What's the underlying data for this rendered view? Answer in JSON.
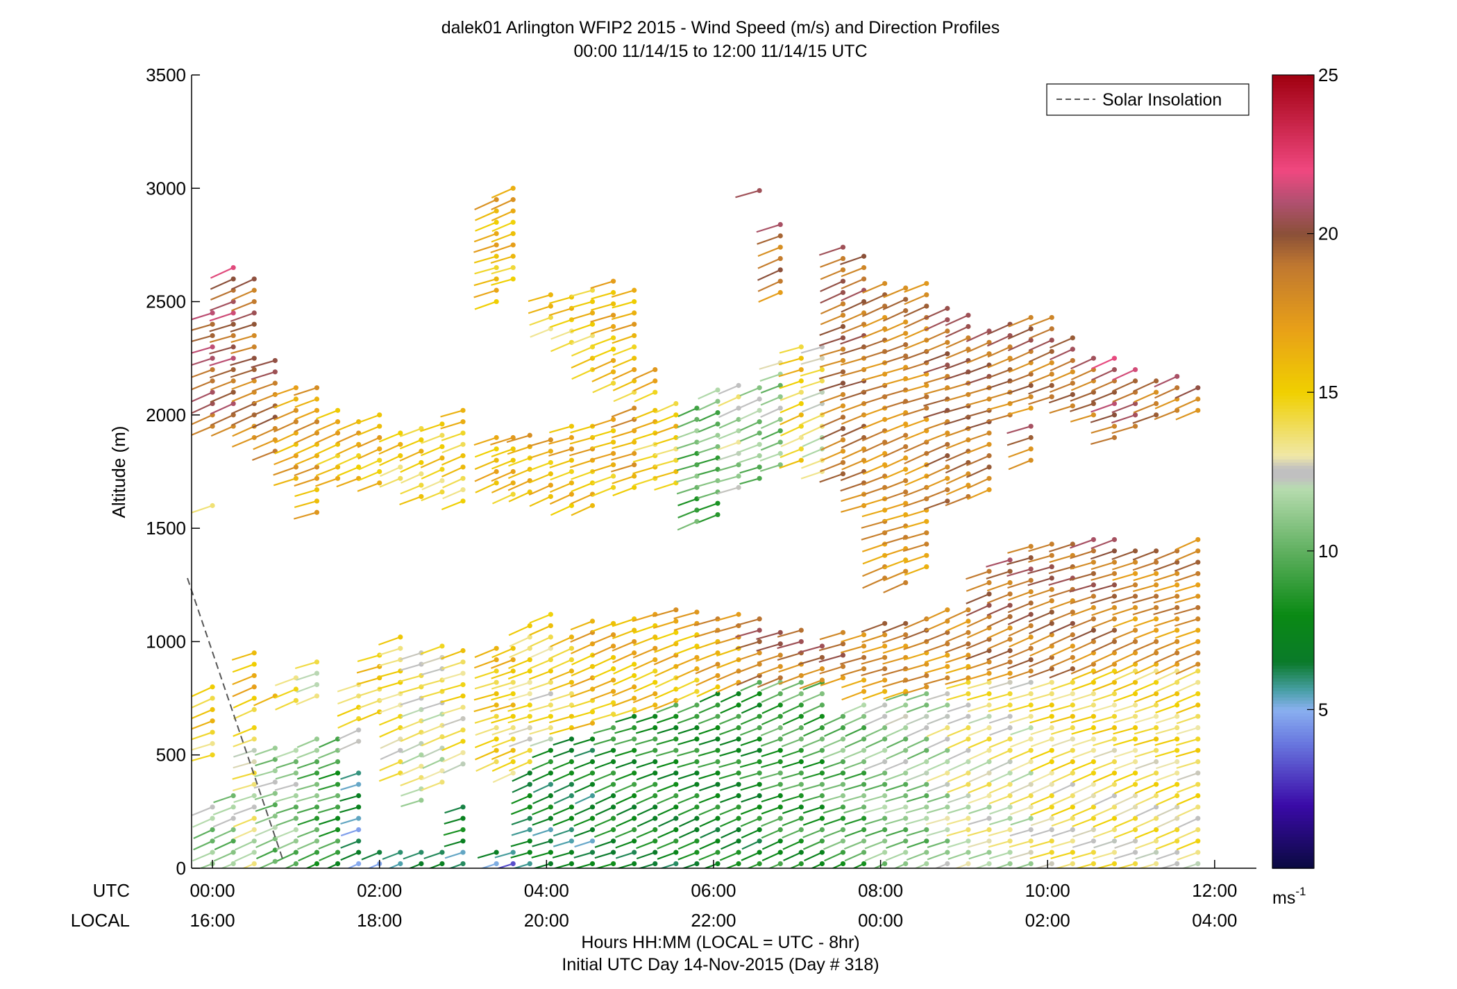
{
  "chart_data": {
    "type": "scatter",
    "title": "dalek01 Arlington WFIP2 2015 - Wind Speed (m/s) and Direction Profiles",
    "subtitle": "00:00 11/14/15 to 12:00 11/14/15  UTC",
    "ylabel": "Altitude (m)",
    "xlabel": "Hours HH:MM  (LOCAL = UTC - 8hr)",
    "xlabel2": "Initial UTC Day 14-Nov-2015 (Day # 318)",
    "utc_label": "UTC",
    "local_label": "LOCAL",
    "x_ticks_utc": [
      "00:00",
      "02:00",
      "04:00",
      "06:00",
      "08:00",
      "10:00",
      "12:00"
    ],
    "x_ticks_local": [
      "16:00",
      "18:00",
      "20:00",
      "22:00",
      "00:00",
      "02:00",
      "04:00"
    ],
    "x_tick_hours": [
      0,
      2,
      4,
      6,
      8,
      10,
      12
    ],
    "xlim": [
      -0.25,
      12.5
    ],
    "y_ticks": [
      0,
      500,
      1000,
      1500,
      2000,
      2500,
      3000,
      3500
    ],
    "ylim": [
      0,
      3500
    ],
    "legend": {
      "entries": [
        "Solar Insolation"
      ],
      "placement": "top-right"
    },
    "colorbar": {
      "unit": "ms",
      "unit_exp": "-1",
      "ticks": [
        5,
        10,
        15,
        20,
        25
      ],
      "range": [
        0,
        25
      ],
      "stops": [
        {
          "v": 0,
          "c": "#0a0a40"
        },
        {
          "v": 2,
          "c": "#3a0aa8"
        },
        {
          "v": 4,
          "c": "#6a7ae0"
        },
        {
          "v": 5,
          "c": "#8ab0f0"
        },
        {
          "v": 5.6,
          "c": "#4aa0a8"
        },
        {
          "v": 6.5,
          "c": "#0a7a2a"
        },
        {
          "v": 8,
          "c": "#0a8a14"
        },
        {
          "v": 10,
          "c": "#60b060"
        },
        {
          "v": 12,
          "c": "#b8dcb0"
        },
        {
          "v": 12.3,
          "c": "#c0c0c0"
        },
        {
          "v": 12.6,
          "c": "#c0c0c0"
        },
        {
          "v": 13,
          "c": "#f0e8a8"
        },
        {
          "v": 15,
          "c": "#f0d000"
        },
        {
          "v": 17,
          "c": "#e8a018"
        },
        {
          "v": 19,
          "c": "#c07830"
        },
        {
          "v": 20,
          "c": "#8a5038"
        },
        {
          "v": 21,
          "c": "#b05070"
        },
        {
          "v": 22,
          "c": "#f04880"
        },
        {
          "v": 25,
          "c": "#a00010"
        }
      ]
    },
    "solar_insolation": {
      "hours": [
        -0.3,
        0.85
      ],
      "altitudes": [
        1280,
        30
      ]
    },
    "colors": {
      "solar_line": "#555555"
    },
    "profiles": [
      {
        "t": 0.0,
        "segs": [
          [
            20,
            300,
            11
          ],
          [
            500,
            800,
            15
          ],
          [
            1600,
            1620,
            15
          ],
          [
            1950,
            2490,
            20
          ]
        ]
      },
      {
        "t": 0.25,
        "segs": [
          [
            20,
            330,
            11
          ],
          [
            1950,
            2690,
            20
          ]
        ]
      },
      {
        "t": 0.5,
        "segs": [
          [
            20,
            630,
            13
          ],
          [
            700,
            980,
            16
          ],
          [
            1900,
            2600,
            19
          ]
        ]
      },
      {
        "t": 0.75,
        "segs": [
          [
            30,
            560,
            11
          ],
          [
            760,
            790,
            16
          ],
          [
            1840,
            2270,
            19
          ]
        ]
      },
      {
        "t": 1.0,
        "segs": [
          [
            20,
            520,
            11
          ],
          [
            740,
            870,
            14
          ],
          [
            1720,
            2140,
            17
          ]
        ]
      },
      {
        "t": 1.25,
        "segs": [
          [
            20,
            600,
            10
          ],
          [
            760,
            920,
            13
          ],
          [
            1570,
            2140,
            17
          ]
        ]
      },
      {
        "t": 1.5,
        "segs": [
          [
            20,
            590,
            9
          ],
          [
            1720,
            2060,
            16
          ]
        ]
      },
      {
        "t": 1.75,
        "segs": [
          [
            20,
            420,
            6
          ],
          [
            560,
            830,
            14
          ],
          [
            1720,
            2000,
            16
          ]
        ]
      },
      {
        "t": 2.0,
        "segs": [
          [
            20,
            100,
            5
          ],
          [
            690,
            960,
            15
          ],
          [
            1700,
            2000,
            16
          ]
        ]
      },
      {
        "t": 2.25,
        "segs": [
          [
            20,
            80,
            5
          ],
          [
            420,
            1020,
            14
          ],
          [
            1720,
            1960,
            15
          ]
        ]
      },
      {
        "t": 2.5,
        "segs": [
          [
            20,
            80,
            6
          ],
          [
            300,
            990,
            13
          ],
          [
            1640,
            1960,
            15
          ]
        ]
      },
      {
        "t": 2.75,
        "segs": [
          [
            20,
            90,
            7
          ],
          [
            380,
            1000,
            13
          ],
          [
            1660,
            2000,
            15
          ]
        ]
      },
      {
        "t": 3.0,
        "segs": [
          [
            20,
            270,
            7
          ],
          [
            460,
            980,
            14
          ],
          [
            1620,
            2050,
            15
          ]
        ]
      },
      {
        "t": 3.4,
        "segs": [
          [
            20,
            100,
            7
          ],
          [
            470,
            1000,
            15
          ],
          [
            1700,
            1900,
            16
          ],
          [
            2500,
            2970,
            16
          ]
        ]
      },
      {
        "t": 3.6,
        "segs": [
          [
            20,
            100,
            5
          ],
          [
            420,
            1000,
            15
          ],
          [
            1650,
            1900,
            16
          ],
          [
            2600,
            3010,
            16
          ]
        ]
      },
      {
        "t": 3.8,
        "segs": [
          [
            20,
            450,
            7
          ],
          [
            470,
            1100,
            14
          ],
          [
            1660,
            1920,
            16
          ]
        ]
      },
      {
        "t": 4.05,
        "segs": [
          [
            20,
            520,
            7
          ],
          [
            570,
            1130,
            14
          ],
          [
            1640,
            1920,
            16
          ],
          [
            2380,
            2550,
            15
          ]
        ]
      },
      {
        "t": 4.3,
        "segs": [
          [
            20,
            580,
            7
          ],
          [
            620,
            1050,
            15
          ],
          [
            1600,
            1950,
            16
          ],
          [
            2320,
            2560,
            15
          ]
        ]
      },
      {
        "t": 4.55,
        "segs": [
          [
            20,
            600,
            7
          ],
          [
            640,
            1100,
            16
          ],
          [
            1600,
            1960,
            16
          ],
          [
            2200,
            2590,
            15
          ]
        ]
      },
      {
        "t": 4.8,
        "segs": [
          [
            20,
            650,
            8
          ],
          [
            680,
            1100,
            16
          ],
          [
            1680,
            2010,
            16
          ],
          [
            2140,
            2600,
            16
          ]
        ]
      },
      {
        "t": 5.05,
        "segs": [
          [
            20,
            690,
            8
          ],
          [
            700,
            1100,
            16
          ],
          [
            1680,
            2040,
            17
          ],
          [
            2100,
            2560,
            16
          ]
        ]
      },
      {
        "t": 5.3,
        "segs": [
          [
            20,
            700,
            8
          ],
          [
            720,
            1150,
            16
          ],
          [
            1720,
            2040,
            15
          ],
          [
            2100,
            2200,
            16
          ]
        ]
      },
      {
        "t": 5.55,
        "segs": [
          [
            20,
            740,
            8
          ],
          [
            740,
            1150,
            16
          ],
          [
            1700,
            2080,
            15
          ]
        ]
      },
      {
        "t": 5.8,
        "segs": [
          [
            20,
            760,
            8
          ],
          [
            780,
            1170,
            16
          ],
          [
            1530,
            2070,
            10
          ]
        ]
      },
      {
        "t": 6.05,
        "segs": [
          [
            20,
            800,
            8
          ],
          [
            800,
            1140,
            17
          ],
          [
            1560,
            2110,
            10
          ]
        ]
      },
      {
        "t": 6.3,
        "segs": [
          [
            20,
            800,
            8
          ],
          [
            820,
            1140,
            17
          ],
          [
            1680,
            2150,
            12
          ]
        ]
      },
      {
        "t": 6.55,
        "segs": [
          [
            20,
            820,
            8
          ],
          [
            850,
            1100,
            19
          ],
          [
            1720,
            2140,
            11
          ],
          [
            2990,
            3010,
            22
          ]
        ]
      },
      {
        "t": 6.8,
        "segs": [
          [
            20,
            840,
            9
          ],
          [
            840,
            1060,
            19
          ],
          [
            1780,
            2240,
            11
          ],
          [
            2540,
            2870,
            19
          ]
        ]
      },
      {
        "t": 7.05,
        "segs": [
          [
            20,
            820,
            9
          ],
          [
            850,
            1050,
            19
          ],
          [
            1800,
            2330,
            15
          ]
        ]
      },
      {
        "t": 7.3,
        "segs": [
          [
            20,
            820,
            9
          ],
          [
            830,
            1010,
            19
          ],
          [
            1750,
            2300,
            13
          ]
        ]
      },
      {
        "t": 7.55,
        "segs": [
          [
            20,
            700,
            10
          ],
          [
            840,
            1050,
            19
          ],
          [
            1740,
            2740,
            19
          ]
        ]
      },
      {
        "t": 7.8,
        "segs": [
          [
            20,
            730,
            10
          ],
          [
            780,
            1070,
            18
          ],
          [
            1600,
            2740,
            19
          ]
        ]
      },
      {
        "t": 8.05,
        "segs": [
          [
            20,
            760,
            11
          ],
          [
            780,
            1100,
            18
          ],
          [
            1280,
            2600,
            18
          ]
        ]
      },
      {
        "t": 8.3,
        "segs": [
          [
            20,
            780,
            11
          ],
          [
            780,
            1100,
            18
          ],
          [
            1260,
            2590,
            18
          ]
        ]
      },
      {
        "t": 8.55,
        "segs": [
          [
            20,
            800,
            11
          ],
          [
            800,
            1120,
            18
          ],
          [
            1330,
            2590,
            18
          ]
        ]
      },
      {
        "t": 8.8,
        "segs": [
          [
            20,
            800,
            12
          ],
          [
            840,
            1140,
            18
          ],
          [
            1620,
            2480,
            19
          ]
        ]
      },
      {
        "t": 9.05,
        "segs": [
          [
            20,
            820,
            13
          ],
          [
            840,
            1150,
            18
          ],
          [
            1640,
            2450,
            19
          ]
        ]
      },
      {
        "t": 9.3,
        "segs": [
          [
            20,
            820,
            13
          ],
          [
            860,
            1320,
            19
          ],
          [
            1670,
            2410,
            19
          ]
        ]
      },
      {
        "t": 9.55,
        "segs": [
          [
            20,
            840,
            13
          ],
          [
            860,
            1400,
            19
          ],
          [
            2000,
            2440,
            19
          ]
        ]
      },
      {
        "t": 9.8,
        "segs": [
          [
            20,
            840,
            13
          ],
          [
            870,
            1420,
            19
          ],
          [
            2030,
            2450,
            19
          ],
          [
            1800,
            1960,
            19
          ]
        ]
      },
      {
        "t": 10.05,
        "segs": [
          [
            20,
            860,
            14
          ],
          [
            880,
            1430,
            19
          ],
          [
            2080,
            2430,
            19
          ]
        ]
      },
      {
        "t": 10.3,
        "segs": [
          [
            20,
            860,
            14
          ],
          [
            880,
            1470,
            19
          ],
          [
            2040,
            2360,
            19
          ]
        ]
      },
      {
        "t": 10.55,
        "segs": [
          [
            20,
            880,
            14
          ],
          [
            900,
            1480,
            19
          ],
          [
            2000,
            2260,
            19
          ]
        ]
      },
      {
        "t": 10.8,
        "segs": [
          [
            20,
            880,
            14
          ],
          [
            900,
            1480,
            19
          ],
          [
            1900,
            2260,
            20
          ]
        ]
      },
      {
        "t": 11.05,
        "segs": [
          [
            20,
            880,
            14
          ],
          [
            900,
            1420,
            18
          ],
          [
            1950,
            2220,
            20
          ]
        ]
      },
      {
        "t": 11.3,
        "segs": [
          [
            20,
            880,
            14
          ],
          [
            900,
            1420,
            18
          ],
          [
            2000,
            2180,
            19
          ]
        ]
      },
      {
        "t": 11.55,
        "segs": [
          [
            20,
            880,
            14
          ],
          [
            900,
            1430,
            18
          ],
          [
            2020,
            2180,
            19
          ]
        ]
      },
      {
        "t": 11.8,
        "segs": [
          [
            20,
            880,
            14
          ],
          [
            900,
            1450,
            18
          ],
          [
            2020,
            2140,
            19
          ]
        ]
      }
    ]
  }
}
